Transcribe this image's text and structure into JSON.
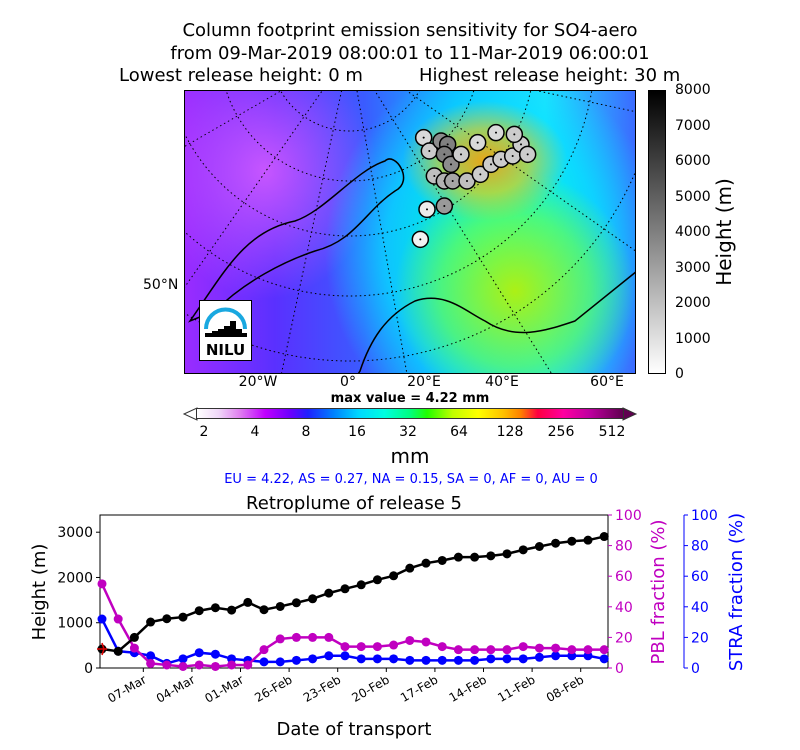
{
  "header": {
    "line1": "Column footprint emission sensitivity for SO4-aero",
    "line2": "from 09-Mar-2019 08:00:01 to 11-Mar-2019 06:00:01",
    "line3_left": "Lowest release height: 0 m",
    "line3_right": "Highest release height: 30 m"
  },
  "map": {
    "lon_labels": [
      "20°W",
      "0°",
      "20°E",
      "40°E",
      "60°E"
    ],
    "lat_label": "50°N",
    "logo_text": "NILU",
    "max_value": "max value = 4.22 mm"
  },
  "colorbar": {
    "ticks": [
      "2",
      "4",
      "8",
      "16",
      "32",
      "64",
      "128",
      "256",
      "512"
    ],
    "unit": "mm"
  },
  "height_colorbar": {
    "ticks": [
      "0",
      "1000",
      "2000",
      "3000",
      "4000",
      "5000",
      "6000",
      "7000",
      "8000"
    ],
    "label": "Height (m)"
  },
  "regions": "EU = 4.22,  AS = 0.27,  NA = 0.15,  SA = 0,  AF = 0,  AU = 0",
  "chart_data": {
    "type": "line",
    "title": "Retroplume of release 5",
    "xlabel": "Date of transport",
    "ylabel": "Height (m)",
    "y2label": "PBL fraction (%)",
    "y3label": "STRA fraction (%)",
    "ylim": [
      0,
      3380
    ],
    "y2lim": [
      0,
      100
    ],
    "y3lim": [
      0,
      100
    ],
    "x_days_back": [
      0,
      1,
      2,
      3,
      4,
      5,
      6,
      7,
      8,
      9,
      10,
      11,
      12,
      13,
      14,
      15,
      16,
      17,
      18,
      19,
      20,
      21,
      22,
      23,
      24,
      25,
      26,
      27,
      28,
      29,
      30,
      31
    ],
    "x_ticks": [
      {
        "label": "07-Mar",
        "day": 2.55
      },
      {
        "label": "04-Mar",
        "day": 5.55
      },
      {
        "label": "01-Mar",
        "day": 8.55
      },
      {
        "label": "26-Feb",
        "day": 11.55
      },
      {
        "label": "23-Feb",
        "day": 14.55
      },
      {
        "label": "20-Feb",
        "day": 17.55
      },
      {
        "label": "17-Feb",
        "day": 20.55
      },
      {
        "label": "14-Feb",
        "day": 23.55
      },
      {
        "label": "11-Feb",
        "day": 26.55
      },
      {
        "label": "08-Feb",
        "day": 29.55
      }
    ],
    "y_ticks": [
      "0",
      "1000",
      "2000",
      "3000"
    ],
    "y2_ticks": [
      "0",
      "20",
      "40",
      "60",
      "80",
      "100"
    ],
    "y3_ticks": [
      "0",
      "20",
      "40",
      "60",
      "80",
      "100"
    ],
    "series": [
      {
        "name": "Height",
        "axis": "left",
        "color": "#000000",
        "values": [
          419,
          368,
          676,
          1015,
          1088,
          1125,
          1265,
          1331,
          1279,
          1449,
          1287,
          1360,
          1441,
          1529,
          1654,
          1750,
          1838,
          1949,
          2037,
          2206,
          2316,
          2375,
          2449,
          2449,
          2478,
          2522,
          2610,
          2684,
          2757,
          2801,
          2824,
          2904
        ]
      },
      {
        "name": "PBL fraction",
        "axis": "right",
        "color": "#c000c0",
        "values": [
          55,
          32,
          13,
          3,
          2,
          1,
          2,
          1,
          2,
          2,
          12,
          19,
          20,
          20,
          20,
          14,
          14,
          14,
          15,
          18,
          17,
          14,
          12,
          12,
          12,
          12,
          14,
          13,
          13,
          12,
          12,
          12
        ]
      },
      {
        "name": "STRA fraction",
        "axis": "right2",
        "color": "#0000ff",
        "values": [
          32,
          11,
          10,
          8,
          3,
          6,
          10,
          9,
          6,
          5,
          4,
          4,
          5,
          6,
          8,
          8,
          6,
          6,
          6,
          5,
          5,
          5,
          5,
          5,
          6,
          6,
          6,
          7,
          8,
          8,
          8,
          6
        ]
      }
    ]
  }
}
